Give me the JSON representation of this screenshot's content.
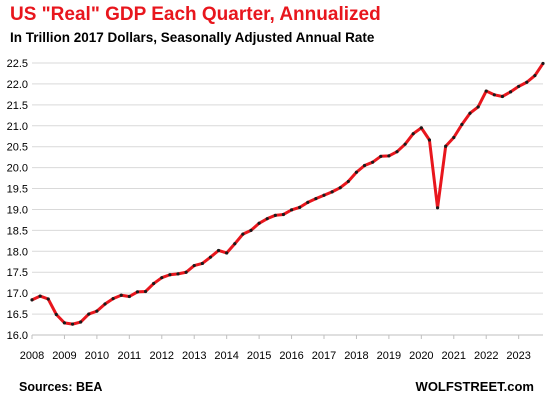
{
  "chart_data": {
    "type": "line",
    "title": "US \"Real\" GDP Each Quarter, Annualized",
    "subtitle": "In Trillion 2017 Dollars, Seasonally Adjusted Annual Rate",
    "xlabel": "",
    "ylabel": "",
    "source": "Sources: BEA",
    "brand": "WOLFSTREET.com",
    "ylim": [
      16.0,
      22.5
    ],
    "yticks": [
      "16.0",
      "16.5",
      "17.0",
      "17.5",
      "18.0",
      "18.5",
      "19.0",
      "19.5",
      "20.0",
      "20.5",
      "21.0",
      "21.5",
      "22.0",
      "22.5"
    ],
    "xticks": [
      "2008",
      "2009",
      "2010",
      "2011",
      "2012",
      "2013",
      "2014",
      "2015",
      "2016",
      "2017",
      "2018",
      "2019",
      "2020",
      "2021",
      "2022",
      "2023"
    ],
    "x_start": {
      "year": 2008,
      "quarter": 1
    },
    "grid": true,
    "colors": {
      "line": "#e8161d",
      "marker": "#1a1a1a",
      "grid": "#d9d9d9",
      "title": "#e8161d"
    },
    "series": [
      {
        "values": [
          16.84,
          16.93,
          16.86,
          16.49,
          16.29,
          16.26,
          16.31,
          16.5,
          16.57,
          16.74,
          16.87,
          16.95,
          16.92,
          17.03,
          17.04,
          17.23,
          17.37,
          17.44,
          17.46,
          17.5,
          17.66,
          17.71,
          17.86,
          18.02,
          17.96,
          18.18,
          18.41,
          18.5,
          18.67,
          18.78,
          18.86,
          18.88,
          18.99,
          19.05,
          19.17,
          19.26,
          19.34,
          19.42,
          19.52,
          19.67,
          19.89,
          20.05,
          20.13,
          20.27,
          20.28,
          20.38,
          20.56,
          20.81,
          20.95,
          20.66,
          19.04,
          20.51,
          20.72,
          21.03,
          21.3,
          21.45,
          21.83,
          21.74,
          21.7,
          21.81,
          21.94,
          22.04,
          22.2,
          22.49
        ]
      }
    ]
  }
}
